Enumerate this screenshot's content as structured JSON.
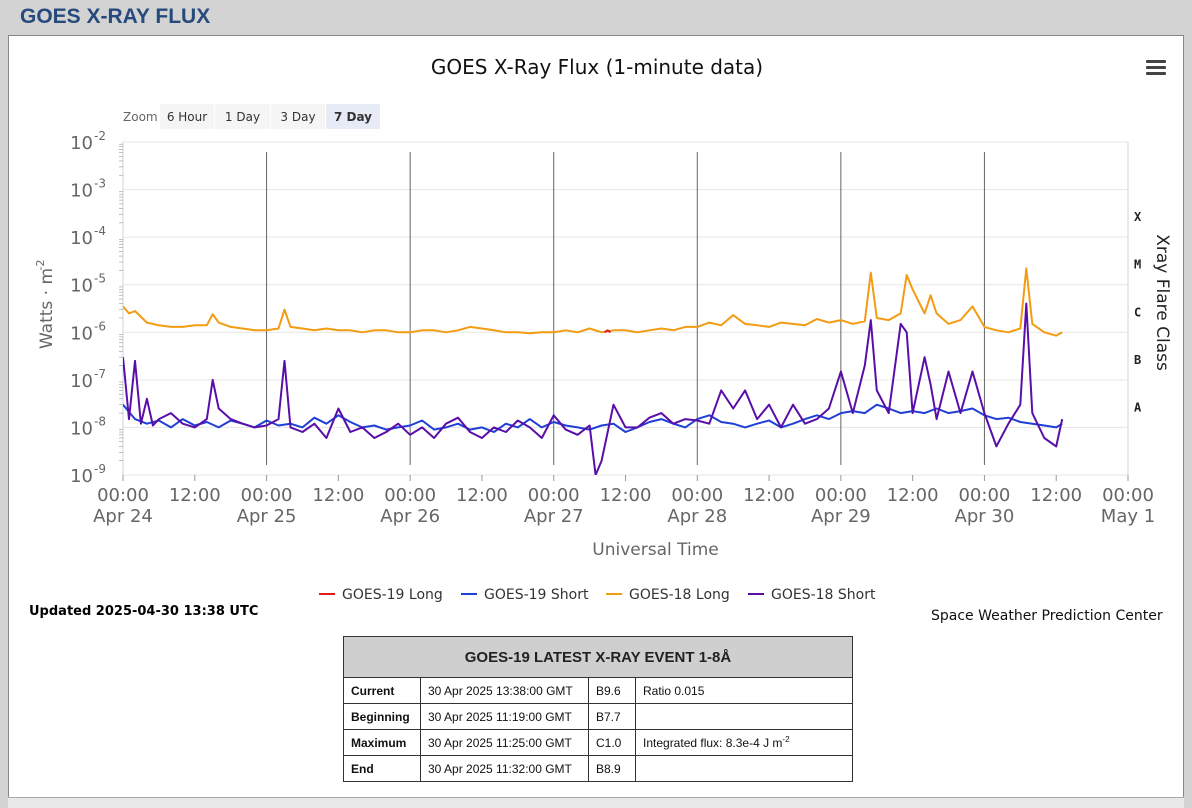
{
  "page": {
    "header_title": "GOES X-RAY FLUX"
  },
  "chart_data": {
    "type": "line",
    "title": "GOES X-Ray Flux (1-minute data)",
    "xlabel": "Universal Time",
    "ylabel": "Watts · m",
    "ylabel_sup": "-2",
    "right_label": "Xray Flare Class",
    "y_scale": "log",
    "ylim": [
      1e-09,
      0.01
    ],
    "y_ticks": [
      {
        "base": "10",
        "exp": "-2"
      },
      {
        "base": "10",
        "exp": "-3"
      },
      {
        "base": "10",
        "exp": "-4"
      },
      {
        "base": "10",
        "exp": "-5"
      },
      {
        "base": "10",
        "exp": "-6"
      },
      {
        "base": "10",
        "exp": "-7"
      },
      {
        "base": "10",
        "exp": "-8"
      },
      {
        "base": "10",
        "exp": "-9"
      }
    ],
    "flare_classes": [
      {
        "label": "X",
        "flux": 0.0001
      },
      {
        "label": "M",
        "flux": 1e-05
      },
      {
        "label": "C",
        "flux": 1e-06
      },
      {
        "label": "B",
        "flux": 1e-07
      },
      {
        "label": "A",
        "flux": 1e-08
      }
    ],
    "x_ticks": [
      {
        "h": 0,
        "time": "00:00",
        "date": "Apr 24"
      },
      {
        "h": 12,
        "time": "12:00",
        "date": ""
      },
      {
        "h": 24,
        "time": "00:00",
        "date": "Apr 25"
      },
      {
        "h": 36,
        "time": "12:00",
        "date": ""
      },
      {
        "h": 48,
        "time": "00:00",
        "date": "Apr 26"
      },
      {
        "h": 60,
        "time": "12:00",
        "date": ""
      },
      {
        "h": 72,
        "time": "00:00",
        "date": "Apr 27"
      },
      {
        "h": 84,
        "time": "12:00",
        "date": ""
      },
      {
        "h": 96,
        "time": "00:00",
        "date": "Apr 28"
      },
      {
        "h": 108,
        "time": "12:00",
        "date": ""
      },
      {
        "h": 120,
        "time": "00:00",
        "date": "Apr 29"
      },
      {
        "h": 132,
        "time": "12:00",
        "date": ""
      },
      {
        "h": 144,
        "time": "00:00",
        "date": "Apr 30"
      },
      {
        "h": 156,
        "time": "12:00",
        "date": ""
      },
      {
        "h": 168,
        "time": "00:00",
        "date": "May 1"
      }
    ],
    "xlim_hours": [
      0,
      168
    ],
    "x_unit": "hours since 2025-04-24 00:00 UTC",
    "series": [
      {
        "name": "GOES-19 Long",
        "color": "#e31a1c",
        "x": [
          80.5,
          81.0,
          81.5
        ],
        "y": [
          1e-06,
          1.1e-06,
          1e-06
        ]
      },
      {
        "name": "GOES-19 Short",
        "color": "#1f3fd6",
        "x": [
          0,
          2,
          4,
          6,
          8,
          10,
          12,
          14,
          16,
          18,
          20,
          22,
          24,
          26,
          28,
          30,
          32,
          34,
          36,
          38,
          40,
          42,
          44,
          46,
          48,
          50,
          52,
          54,
          56,
          58,
          60,
          62,
          64,
          66,
          68,
          70,
          72,
          74,
          76,
          78,
          80,
          82,
          84,
          86,
          88,
          90,
          92,
          94,
          96,
          98,
          100,
          102,
          104,
          106,
          108,
          110,
          112,
          114,
          116,
          118,
          120,
          122,
          124,
          126,
          128,
          130,
          132,
          134,
          136,
          138,
          140,
          142,
          144,
          146,
          148,
          150,
          152,
          154,
          156,
          157
        ],
        "y": [
          3e-08,
          1.5e-08,
          1.2e-08,
          1.4e-08,
          1e-08,
          1.5e-08,
          1.1e-08,
          1.3e-08,
          1e-08,
          1.4e-08,
          1.2e-08,
          1e-08,
          1.4e-08,
          1.1e-08,
          1.2e-08,
          1e-08,
          1.6e-08,
          1.2e-08,
          1.8e-08,
          1.3e-08,
          1e-08,
          1.1e-08,
          9e-09,
          1e-08,
          1.1e-08,
          1.4e-08,
          9e-09,
          1e-08,
          1.2e-08,
          9e-09,
          1e-08,
          8e-09,
          1.2e-08,
          1e-08,
          1.5e-08,
          1e-08,
          1.3e-08,
          1.1e-08,
          1e-08,
          9e-09,
          1.1e-08,
          1.2e-08,
          8e-09,
          1e-08,
          1.3e-08,
          1.5e-08,
          1.2e-08,
          1e-08,
          1.5e-08,
          1.8e-08,
          1.3e-08,
          1.2e-08,
          1e-08,
          1.2e-08,
          1.4e-08,
          1e-08,
          1.2e-08,
          1.5e-08,
          1.8e-08,
          1.5e-08,
          2e-08,
          2.2e-08,
          2e-08,
          3e-08,
          2.5e-08,
          2e-08,
          2.2e-08,
          2e-08,
          2.5e-08,
          2e-08,
          2.2e-08,
          2.5e-08,
          1.8e-08,
          1.5e-08,
          1.6e-08,
          1.3e-08,
          1.2e-08,
          1.1e-08,
          1e-08,
          1.2e-08
        ]
      },
      {
        "name": "GOES-18 Long",
        "color": "#f39c12",
        "x": [
          0,
          1,
          2,
          4,
          6,
          8,
          10,
          12,
          14,
          15,
          16,
          18,
          20,
          22,
          24,
          26,
          27,
          28,
          30,
          32,
          34,
          36,
          38,
          40,
          42,
          44,
          46,
          48,
          50,
          52,
          54,
          56,
          58,
          60,
          62,
          64,
          66,
          68,
          70,
          72,
          74,
          76,
          78,
          80,
          82,
          84,
          86,
          88,
          90,
          92,
          94,
          96,
          98,
          100,
          102,
          104,
          106,
          108,
          110,
          112,
          114,
          116,
          118,
          120,
          122,
          124,
          125,
          126,
          128,
          130,
          131,
          132,
          134,
          135,
          136,
          138,
          140,
          142,
          144,
          146,
          148,
          150,
          151,
          152,
          154,
          156,
          157
        ],
        "y": [
          3.5e-06,
          2.5e-06,
          2.8e-06,
          1.6e-06,
          1.4e-06,
          1.3e-06,
          1.3e-06,
          1.4e-06,
          1.4e-06,
          2.4e-06,
          1.6e-06,
          1.3e-06,
          1.2e-06,
          1.1e-06,
          1.1e-06,
          1.2e-06,
          3e-06,
          1.3e-06,
          1.2e-06,
          1.1e-06,
          1.2e-06,
          1.1e-06,
          1.1e-06,
          1e-06,
          1.1e-06,
          1.1e-06,
          1e-06,
          1e-06,
          1.1e-06,
          1.1e-06,
          1e-06,
          1.1e-06,
          1.3e-06,
          1.2e-06,
          1.1e-06,
          1e-06,
          1e-06,
          9.5e-07,
          1e-06,
          1e-06,
          1.1e-06,
          1e-06,
          1.2e-06,
          1e-06,
          1.1e-06,
          1.1e-06,
          1e-06,
          1.1e-06,
          1.2e-06,
          1.1e-06,
          1.3e-06,
          1.3e-06,
          1.6e-06,
          1.4e-06,
          2.3e-06,
          1.5e-06,
          1.4e-06,
          1.3e-06,
          1.6e-06,
          1.5e-06,
          1.4e-06,
          1.9e-06,
          1.6e-06,
          1.8e-06,
          1.5e-06,
          1.7e-06,
          1.8e-05,
          2e-06,
          1.8e-06,
          2.5e-06,
          1.6e-05,
          8e-06,
          2.5e-06,
          6e-06,
          2.5e-06,
          1.5e-06,
          1.8e-06,
          3.5e-06,
          1.3e-06,
          1.1e-06,
          1e-06,
          1.2e-06,
          2.2e-05,
          1.5e-06,
          1e-06,
          8.5e-07,
          1e-06
        ]
      },
      {
        "name": "GOES-18 Short",
        "color": "#5a0ea8",
        "x": [
          0,
          1,
          2,
          3,
          4,
          5,
          6,
          8,
          10,
          12,
          14,
          15,
          16,
          18,
          20,
          22,
          24,
          26,
          27,
          28,
          30,
          32,
          34,
          36,
          38,
          40,
          42,
          44,
          46,
          48,
          50,
          52,
          54,
          56,
          58,
          60,
          62,
          64,
          66,
          68,
          70,
          72,
          74,
          76,
          78,
          79,
          80,
          82,
          84,
          86,
          88,
          90,
          92,
          94,
          96,
          98,
          100,
          102,
          104,
          106,
          108,
          110,
          112,
          114,
          116,
          118,
          120,
          122,
          124,
          125,
          126,
          128,
          130,
          131,
          132,
          134,
          135,
          136,
          138,
          140,
          142,
          144,
          146,
          148,
          150,
          151,
          152,
          154,
          156,
          157
        ],
        "y": [
          3e-07,
          1.5e-08,
          2.5e-07,
          1.2e-08,
          4e-08,
          1.1e-08,
          1.5e-08,
          2e-08,
          1.2e-08,
          1e-08,
          1.5e-08,
          1e-07,
          2.5e-08,
          1.5e-08,
          1.2e-08,
          1e-08,
          1.1e-08,
          1.5e-08,
          2.5e-07,
          1e-08,
          8e-09,
          1.2e-08,
          6e-09,
          2.5e-08,
          8e-09,
          1e-08,
          6e-09,
          8e-09,
          1.2e-08,
          7e-09,
          1e-08,
          6e-09,
          1.2e-08,
          1.6e-08,
          8e-09,
          6e-09,
          1e-08,
          8e-09,
          1.4e-08,
          1e-08,
          6e-09,
          1.8e-08,
          9e-09,
          7e-09,
          1.1e-08,
          1e-09,
          2e-09,
          3e-08,
          1e-08,
          1e-08,
          1.6e-08,
          2e-08,
          1.2e-08,
          1.5e-08,
          1.4e-08,
          1.2e-08,
          6e-08,
          2.5e-08,
          6e-08,
          1.5e-08,
          3e-08,
          1e-08,
          3e-08,
          1.2e-08,
          1.5e-08,
          2.5e-08,
          1.5e-07,
          2e-08,
          2e-07,
          1.8e-06,
          6e-08,
          2e-08,
          1.5e-06,
          1e-06,
          2e-08,
          3e-07,
          8e-08,
          1.5e-08,
          1.5e-07,
          2e-08,
          1.5e-07,
          2e-08,
          4e-09,
          1.2e-08,
          3e-08,
          4e-06,
          2e-08,
          6e-09,
          4e-09,
          1.5e-08
        ]
      }
    ]
  },
  "zoom": {
    "label": "Zoom",
    "buttons": [
      "6 Hour",
      "1 Day",
      "3 Day",
      "7 Day"
    ],
    "active": "7 Day"
  },
  "menu": {
    "icon": "hamburger-menu-icon"
  },
  "footer": {
    "updated": "Updated 2025-04-30 13:38 UTC",
    "credit": "Space Weather Prediction Center"
  },
  "event_table": {
    "title": "GOES-19 LATEST X-RAY EVENT 1-8Å",
    "rows": [
      {
        "label": "Current",
        "time": "30 Apr 2025 13:38:00 GMT",
        "class": "B9.6",
        "note": "Ratio 0.015",
        "note_sup": ""
      },
      {
        "label": "Beginning",
        "time": "30 Apr 2025 11:19:00 GMT",
        "class": "B7.7",
        "note": "",
        "note_sup": ""
      },
      {
        "label": "Maximum",
        "time": "30 Apr 2025 11:25:00 GMT",
        "class": "C1.0",
        "note": "Integrated flux: 8.3e-4 J m",
        "note_sup": "-2"
      },
      {
        "label": "End",
        "time": "30 Apr 2025 11:32:00 GMT",
        "class": "B8.9",
        "note": "",
        "note_sup": ""
      }
    ]
  }
}
